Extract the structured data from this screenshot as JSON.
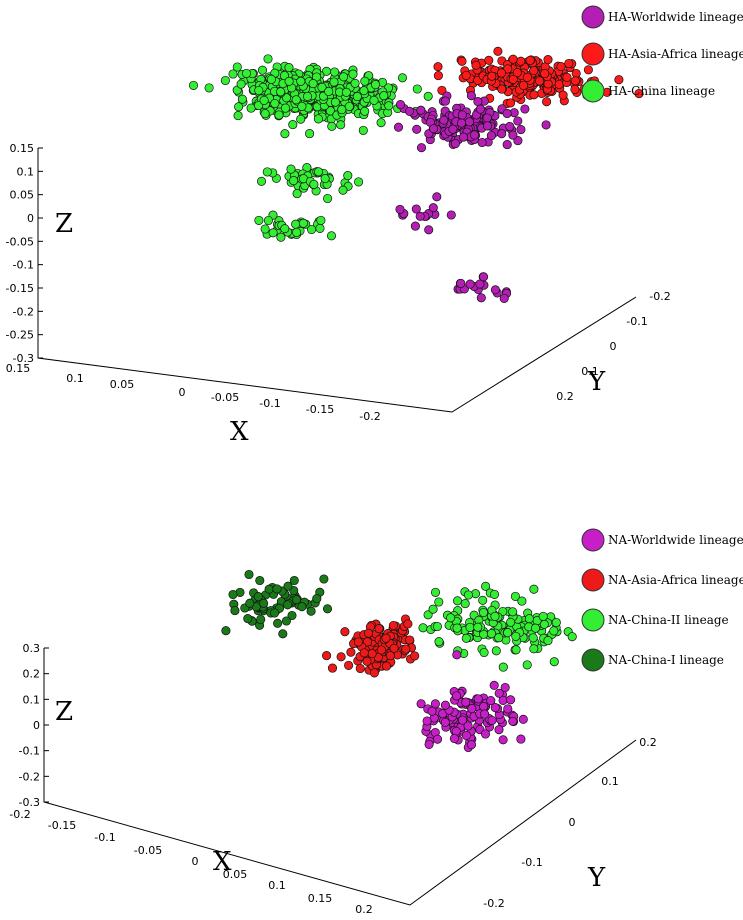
{
  "chart_data": [
    {
      "type": "scatter",
      "panel": "HA",
      "axis_names": {
        "x": "X",
        "y": "Y",
        "z": "Z"
      },
      "z_ticks": [
        "0.15",
        "0.1",
        "0.05",
        "0",
        "-0.05",
        "-0.1",
        "-0.15",
        "-0.2",
        "-0.25",
        "-0.3"
      ],
      "x_ticks": [
        "0.15",
        "0.1",
        "0.05",
        "0",
        "-0.05",
        "-0.1",
        "-0.15",
        "-0.2"
      ],
      "y_ticks": [
        "-0.2",
        "-0.1",
        "0",
        "0.1",
        "0.2"
      ],
      "zlim": [
        -0.3,
        0.15
      ],
      "xlim": [
        0.15,
        -0.2
      ],
      "ylim": [
        -0.2,
        0.2
      ],
      "series": [
        {
          "name": "HA-Worldwide lineage",
          "color": "#b41eb4",
          "n_points": 180,
          "clusters": [
            {
              "x": -0.07,
              "y": 0.05,
              "z": 0.05,
              "spread": [
                0.04,
                0.05,
                0.03
              ],
              "weight": 0.82
            },
            {
              "x": -0.05,
              "y": 0.0,
              "z": -0.12,
              "spread": [
                0.03,
                0.03,
                0.04
              ],
              "weight": 0.08
            },
            {
              "x": -0.1,
              "y": 0.0,
              "z": -0.27,
              "spread": [
                0.02,
                0.03,
                0.02
              ],
              "weight": 0.1
            }
          ]
        },
        {
          "name": "HA-Asia-Africa lineage",
          "color": "#ff1a1a",
          "n_points": 220,
          "clusters": [
            {
              "x": -0.1,
              "y": 0.12,
              "z": 0.12,
              "spread": [
                0.05,
                0.05,
                0.02
              ],
              "weight": 1.0
            }
          ]
        },
        {
          "name": "HA-China lineage",
          "color": "#33ee33",
          "n_points": 600,
          "clusters": [
            {
              "x": 0.03,
              "y": -0.02,
              "z": 0.12,
              "spread": [
                0.06,
                0.06,
                0.03
              ],
              "weight": 0.88
            },
            {
              "x": 0.04,
              "y": 0.0,
              "z": -0.08,
              "spread": [
                0.03,
                0.03,
                0.03
              ],
              "weight": 0.07
            },
            {
              "x": 0.07,
              "y": 0.05,
              "z": -0.22,
              "spread": [
                0.03,
                0.03,
                0.03
              ],
              "weight": 0.05
            }
          ]
        }
      ]
    },
    {
      "type": "scatter",
      "panel": "NA",
      "axis_names": {
        "x": "X",
        "y": "Y",
        "z": "Z"
      },
      "z_ticks": [
        "0.3",
        "0.2",
        "0.1",
        "0",
        "-0.1",
        "-0.2",
        "-0.3"
      ],
      "x_ticks": [
        "-0.2",
        "-0.15",
        "-0.1",
        "-0.05",
        "0",
        "0.05",
        "0.1",
        "0.15",
        "0.2"
      ],
      "y_ticks": [
        "0.2",
        "0.1",
        "0",
        "-0.1",
        "-0.2"
      ],
      "zlim": [
        -0.3,
        0.3
      ],
      "xlim": [
        -0.2,
        0.2
      ],
      "ylim": [
        0.2,
        -0.2
      ],
      "series": [
        {
          "name": "NA-Worldwide lineage",
          "color": "#c81ec8",
          "n_points": 120,
          "clusters": [
            {
              "x": 0.1,
              "y": 0.02,
              "z": -0.08,
              "spread": [
                0.04,
                0.05,
                0.07
              ],
              "weight": 1.0
            }
          ]
        },
        {
          "name": "NA-Asia-Africa lineage",
          "color": "#ee1a1a",
          "n_points": 110,
          "clusters": [
            {
              "x": -0.01,
              "y": 0.0,
              "z": 0.05,
              "spread": [
                0.03,
                0.05,
                0.05
              ],
              "weight": 1.0
            }
          ]
        },
        {
          "name": "NA-China-II lineage",
          "color": "#33ee33",
          "n_points": 150,
          "clusters": [
            {
              "x": 0.1,
              "y": -0.04,
              "z": 0.18,
              "spread": [
                0.07,
                0.06,
                0.04
              ],
              "weight": 1.0
            }
          ]
        },
        {
          "name": "NA-China-I lineage",
          "color": "#1a7a1a",
          "n_points": 70,
          "clusters": [
            {
              "x": -0.1,
              "y": 0.05,
              "z": 0.2,
              "spread": [
                0.04,
                0.05,
                0.03
              ],
              "weight": 1.0
            }
          ]
        }
      ]
    }
  ]
}
